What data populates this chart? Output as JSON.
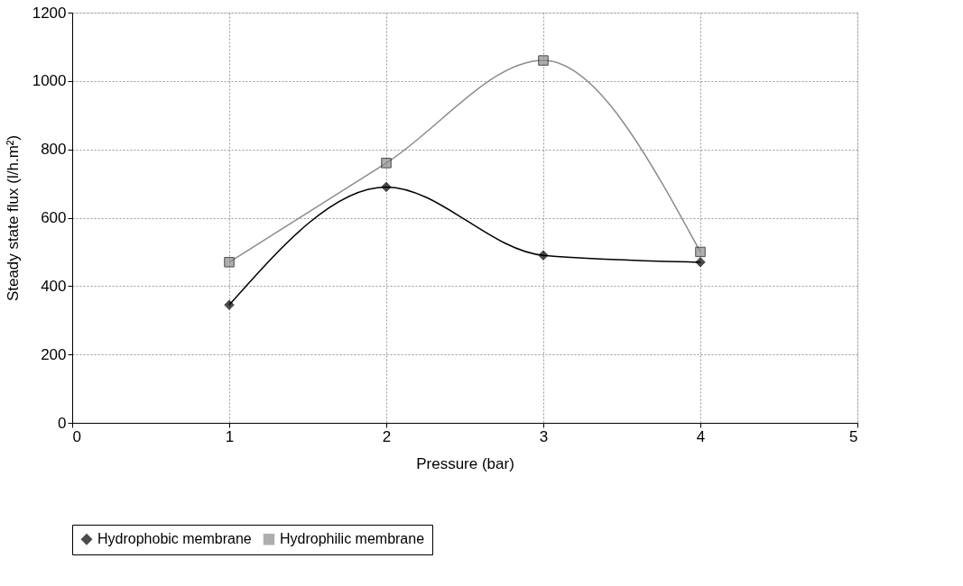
{
  "chart_data": {
    "type": "line",
    "xlabel": "Pressure (bar)",
    "ylabel": "Steady state flux (l/h.m²)",
    "x": [
      1,
      2,
      3,
      4
    ],
    "series": [
      {
        "name": "Hydrophobic membrane",
        "color": "#000000",
        "marker": "diamond",
        "values": [
          345,
          690,
          490,
          470
        ]
      },
      {
        "name": "Hydrophilic membrane",
        "color": "#8c8c8c",
        "marker": "square",
        "values": [
          470,
          760,
          1060,
          500
        ]
      }
    ],
    "xlim": [
      0,
      5
    ],
    "xticks": [
      0,
      1,
      2,
      3,
      4,
      5
    ],
    "ylim": [
      0,
      1200
    ],
    "yticks": [
      0,
      200,
      400,
      600,
      800,
      1000,
      1200
    ],
    "grid": true,
    "legend": "bottom",
    "line_style": "solid"
  }
}
